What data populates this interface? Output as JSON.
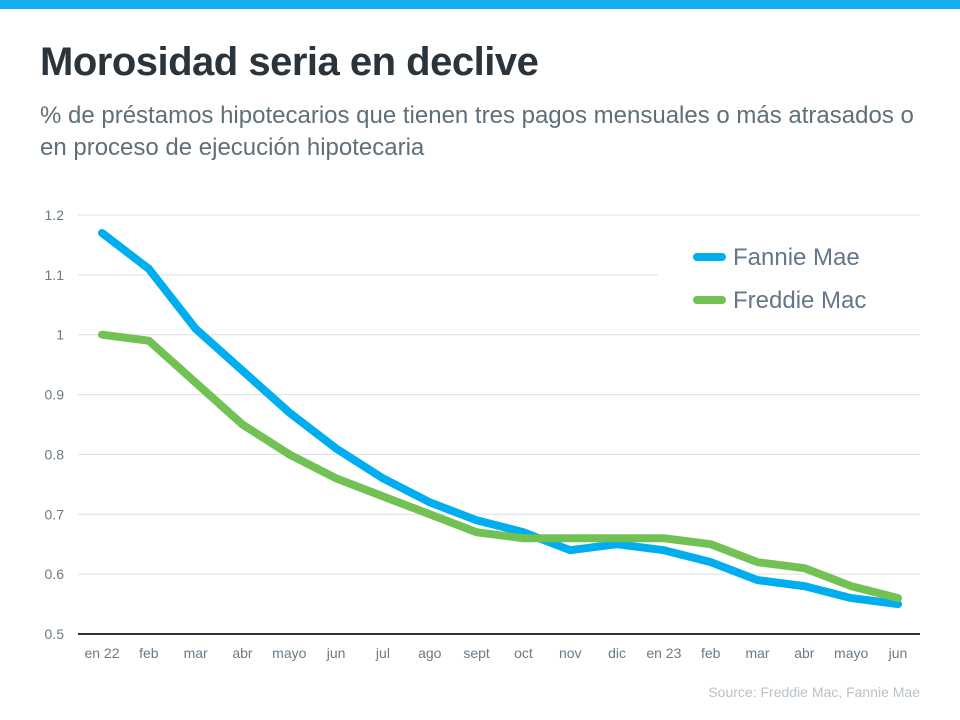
{
  "header": {
    "title": "Morosidad seria en declive",
    "subtitle": "% de préstamos hipotecarios que tienen tres pagos mensuales o más atrasados o en proceso de ejecución hipotecaria"
  },
  "footer": {
    "source": "Source: Freddie Mac, Fannie Mae"
  },
  "colors": {
    "accent_bar": "#12aef0",
    "fannie_mae": "#00aeef",
    "freddie_mac": "#72c154"
  },
  "chart_data": {
    "type": "line",
    "title": "Morosidad seria en declive",
    "subtitle": "% de préstamos hipotecarios que tienen tres pagos mensuales o más atrasados o en proceso de ejecución hipotecaria",
    "xlabel": "",
    "ylabel": "",
    "categories": [
      "en 22",
      "feb",
      "mar",
      "abr",
      "mayo",
      "jun",
      "jul",
      "ago",
      "sept",
      "oct",
      "nov",
      "dic",
      "en 23",
      "feb",
      "mar",
      "abr",
      "mayo",
      "jun"
    ],
    "yticks": [
      "0.5",
      "0.6",
      "0.7",
      "0.8",
      "0.9",
      "1",
      "1.1",
      "1.2"
    ],
    "ylim": [
      0.5,
      1.2
    ],
    "grid": true,
    "legend_position": "top-right",
    "series": [
      {
        "name": "Fannie Mae",
        "color": "#00aeef",
        "values": [
          1.17,
          1.11,
          1.01,
          0.94,
          0.87,
          0.81,
          0.76,
          0.72,
          0.69,
          0.67,
          0.64,
          0.65,
          0.64,
          0.62,
          0.59,
          0.58,
          0.56,
          0.55
        ]
      },
      {
        "name": "Freddie Mac",
        "color": "#72c154",
        "values": [
          1.0,
          0.99,
          0.92,
          0.85,
          0.8,
          0.76,
          0.73,
          0.7,
          0.67,
          0.66,
          0.66,
          0.66,
          0.66,
          0.65,
          0.62,
          0.61,
          0.58,
          0.56
        ]
      }
    ],
    "source": "Source: Freddie Mac, Fannie Mae"
  }
}
